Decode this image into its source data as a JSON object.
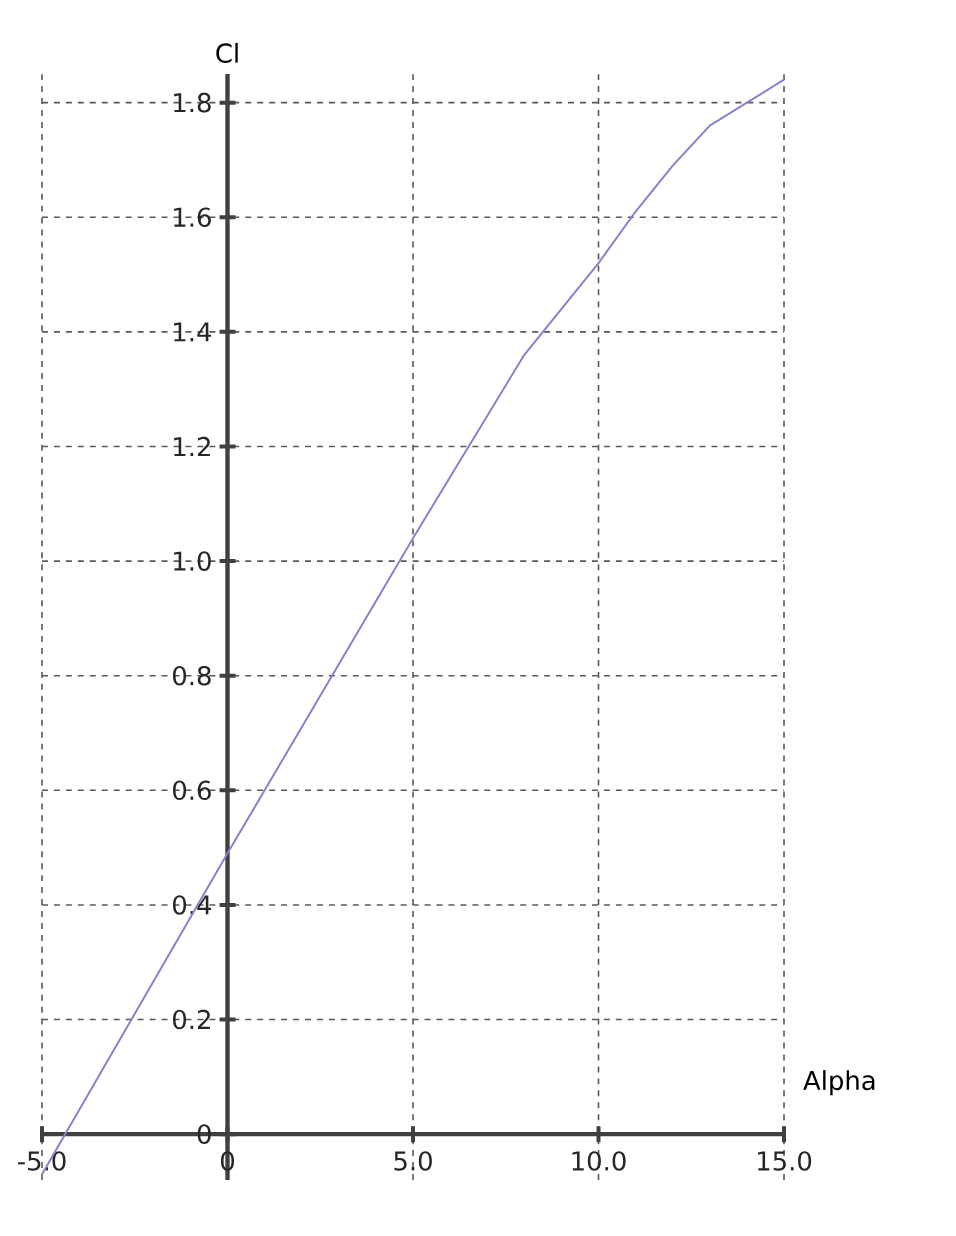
{
  "chart_data": {
    "type": "line",
    "xlabel": "Alpha",
    "ylabel": "Cl",
    "x": [
      -5,
      0,
      5,
      8,
      10,
      11,
      12,
      13,
      14,
      15
    ],
    "series": [
      {
        "color": "#8484c8",
        "values": [
          -0.07,
          0.49,
          1.04,
          1.36,
          1.52,
          1.61,
          1.69,
          1.76,
          1.8,
          1.84
        ]
      }
    ],
    "xlim": [
      -5,
      15
    ],
    "ylim": [
      -0.08,
      1.85
    ],
    "xticks": [
      {
        "value": -5,
        "label": "-5.0"
      },
      0,
      {
        "value": 5,
        "label": "5.0"
      },
      {
        "value": 10,
        "label": "10.0"
      },
      {
        "value": 15,
        "label": "15.0"
      }
    ],
    "yticks": [
      0,
      0.2,
      0.4,
      0.6,
      0.8,
      {
        "value": 1,
        "label": "1.0"
      },
      1.2,
      1.4,
      1.6,
      1.8
    ],
    "grid": true,
    "marker": "none",
    "line_style": "solid"
  }
}
